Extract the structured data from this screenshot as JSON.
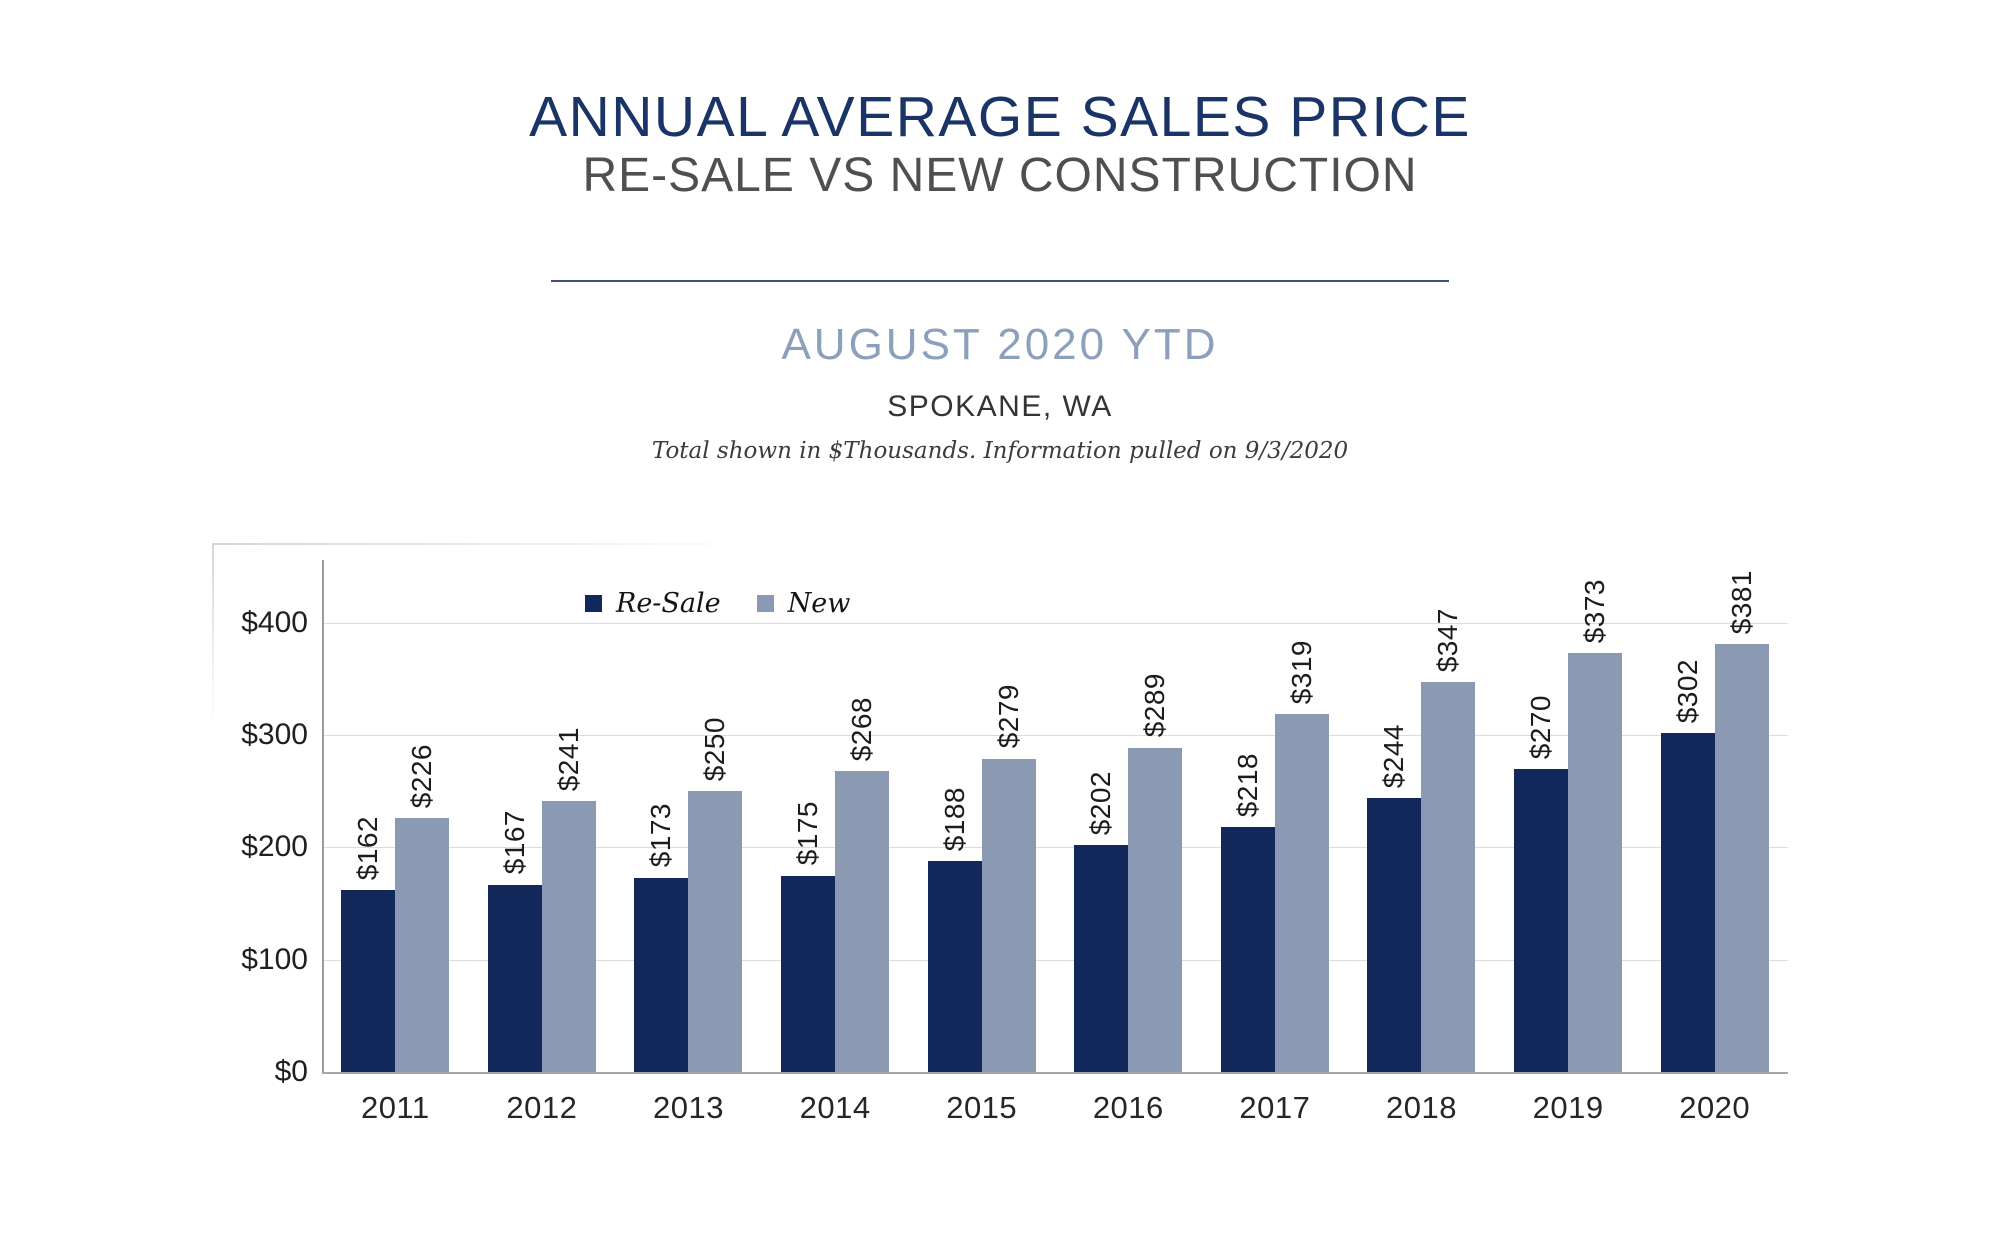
{
  "header": {
    "title": "ANNUAL AVERAGE SALES PRICE",
    "subtitle": "RE-SALE VS NEW CONSTRUCTION",
    "period": "AUGUST 2020 YTD",
    "location": "SPOKANE, WA",
    "note": "Total shown in $Thousands. Information pulled on 9/3/2020"
  },
  "colors": {
    "title_navy": "#1b3467",
    "subtitle_gray": "#4f4f4f",
    "period_steel_blue": "#8c9fbb",
    "divider": "#3d5276",
    "resale_bar": "#12275a",
    "new_bar": "#8b9ab2",
    "gridline": "#dcdcdc",
    "axis_line": "#9b9b9b"
  },
  "legend": {
    "items": [
      {
        "label": "Re-Sale",
        "color": "#12275a"
      },
      {
        "label": "New",
        "color": "#8b9ab2"
      }
    ]
  },
  "chart_data": {
    "type": "bar",
    "title": "Annual Average Sales Price, Re-Sale vs New Construction, August 2020 YTD, Spokane WA",
    "categories": [
      "2011",
      "2012",
      "2013",
      "2014",
      "2015",
      "2016",
      "2017",
      "2018",
      "2019",
      "2020"
    ],
    "series": [
      {
        "name": "Re-Sale",
        "color": "#12275a",
        "values": [
          162,
          167,
          173,
          175,
          188,
          202,
          218,
          244,
          270,
          302
        ]
      },
      {
        "name": "New",
        "color": "#8b9ab2",
        "values": [
          226,
          241,
          250,
          268,
          279,
          289,
          319,
          347,
          373,
          381
        ]
      }
    ],
    "value_prefix": "$",
    "units": "$Thousands",
    "xlabel": "",
    "ylabel": "",
    "ylim": [
      0,
      456
    ],
    "yticks": [
      0,
      100,
      200,
      300,
      400
    ],
    "ytick_labels": [
      "$0",
      "$100",
      "$200",
      "$300",
      "$400"
    ],
    "grid": true,
    "legend_position": "inside-top-left"
  }
}
